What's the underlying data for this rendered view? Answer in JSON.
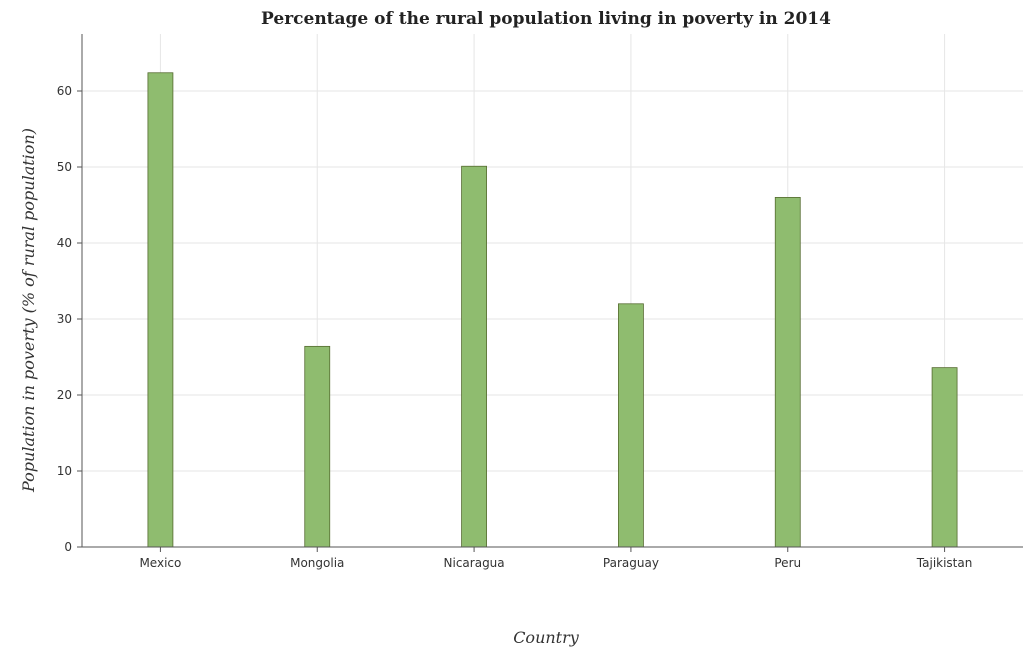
{
  "chart_data": {
    "type": "bar",
    "title": "Percentage of the rural population living in poverty in 2014",
    "xlabel": "Country",
    "ylabel": "Population in poverty (% of rural population)",
    "categories": [
      "Mexico",
      "Mongolia",
      "Nicaragua",
      "Paraguay",
      "Peru",
      "Tajikistan"
    ],
    "values": [
      62.4,
      26.4,
      50.1,
      32.0,
      46.0,
      23.6
    ],
    "ylim": [
      0,
      67.5
    ],
    "yticks": [
      0,
      10,
      20,
      30,
      40,
      50,
      60
    ],
    "grid": true,
    "bar_color": "#8fbc6f"
  }
}
